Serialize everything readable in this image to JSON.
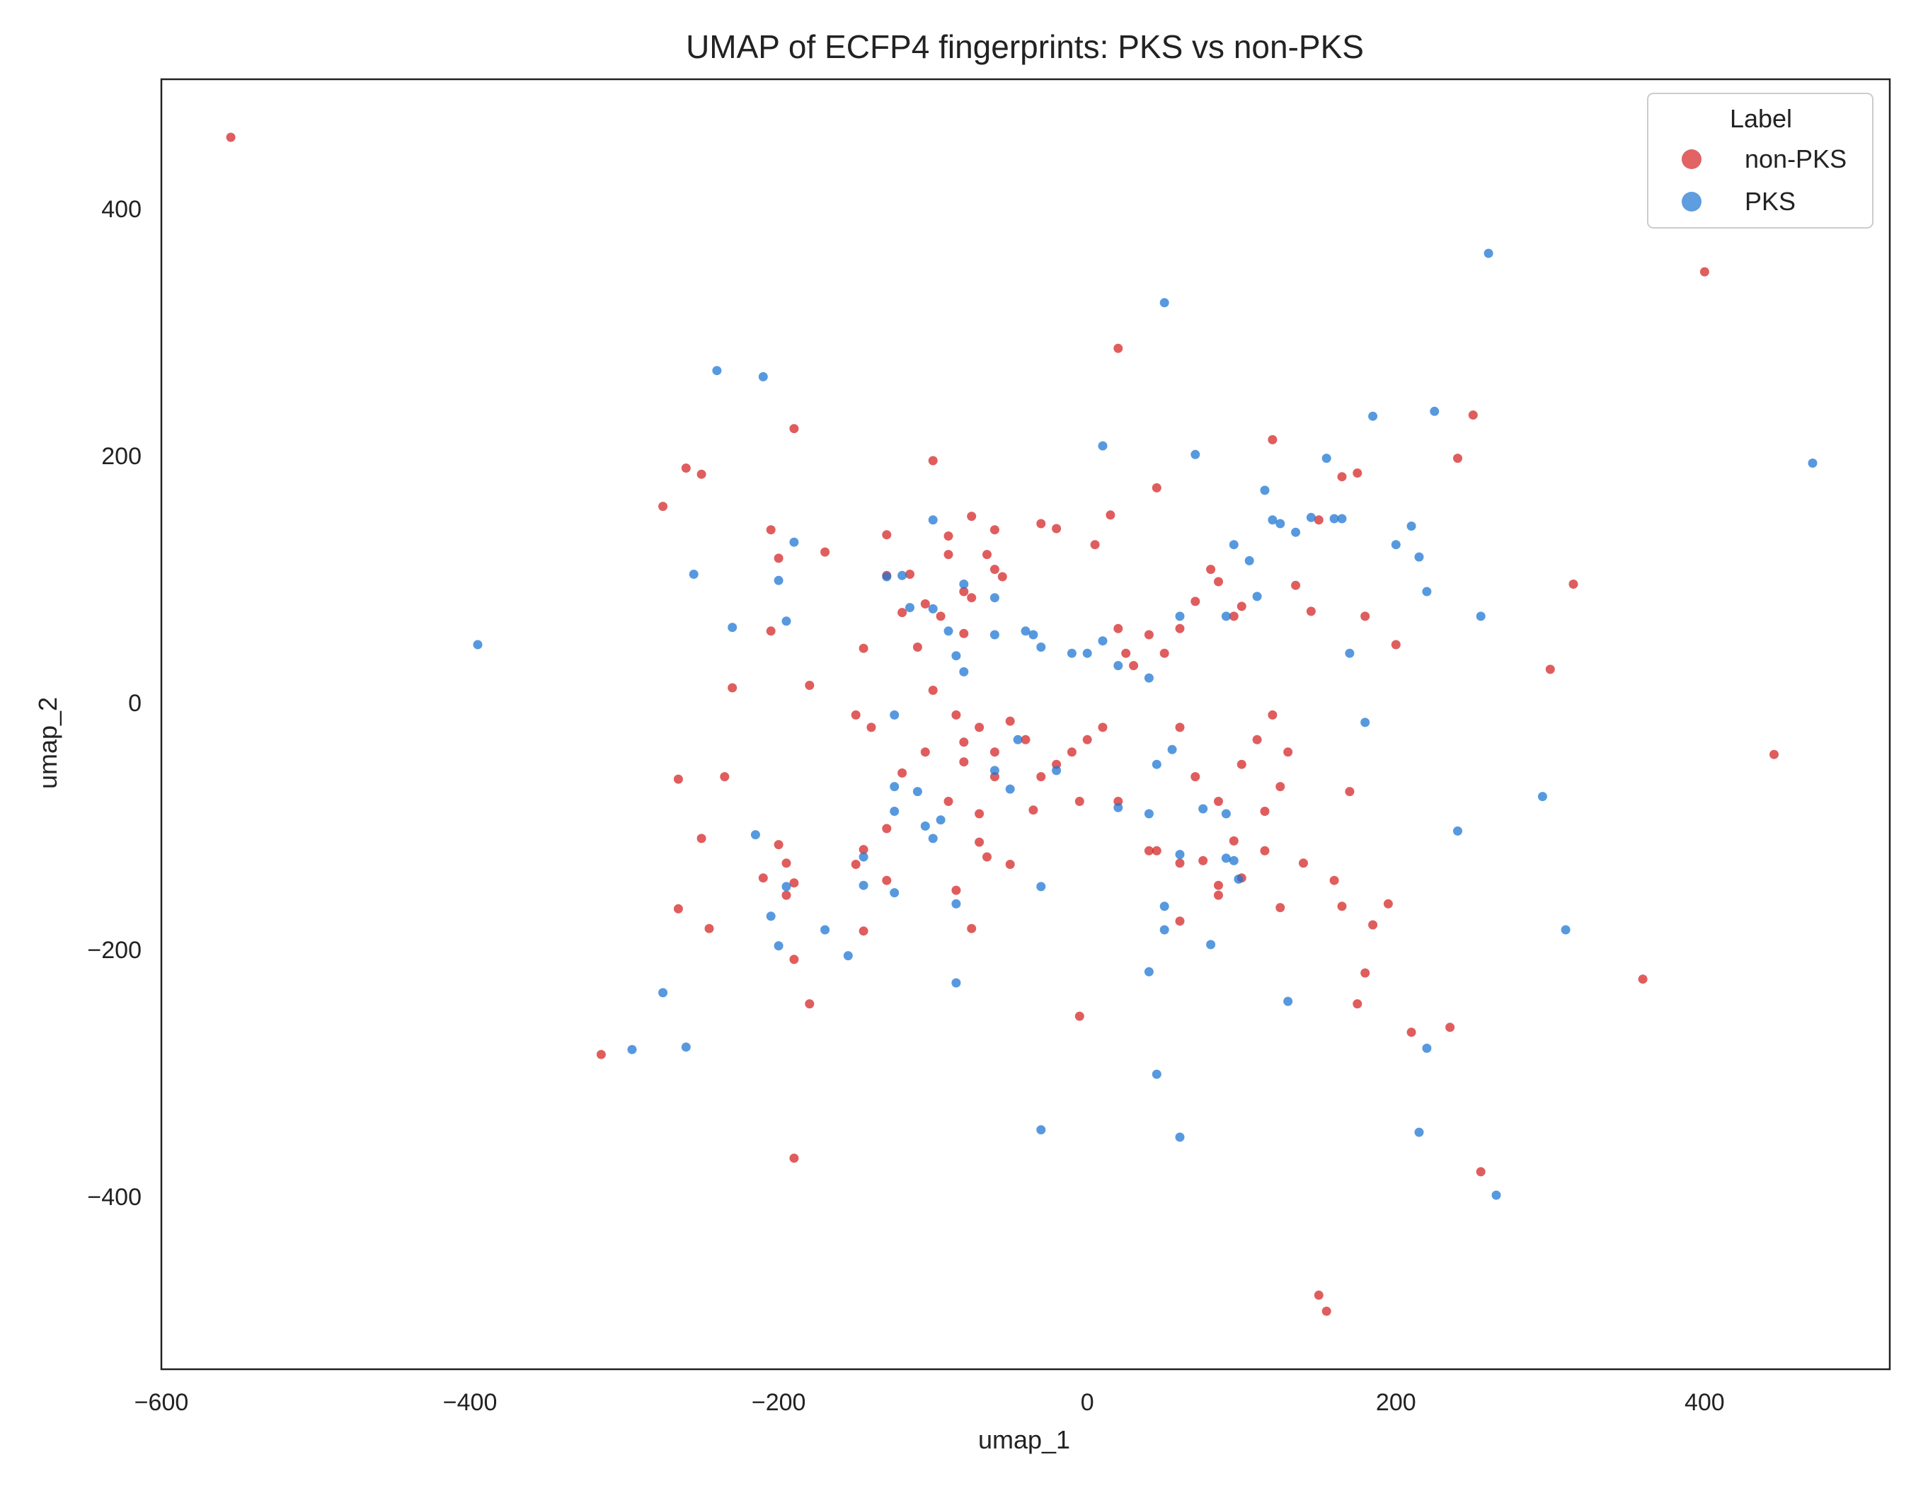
{
  "chart_data": {
    "type": "scatter",
    "title": "UMAP of ECFP4 fingerprints: PKS vs non-PKS",
    "xlabel": "umap_1",
    "ylabel": "umap_2",
    "xlim": [
      -600,
      520
    ],
    "ylim": [
      -540,
      505
    ],
    "xticks": [
      -600,
      -400,
      -200,
      0,
      200,
      400
    ],
    "yticks": [
      -400,
      -200,
      0,
      200,
      400
    ],
    "grid": false,
    "legend": {
      "title": "Label",
      "position": "top-right"
    },
    "series": [
      {
        "name": "non-PKS",
        "color": "#d62728",
        "points": [
          [
            -555,
            458
          ],
          [
            20,
            287
          ],
          [
            400,
            349
          ],
          [
            -190,
            222
          ],
          [
            250,
            233
          ],
          [
            120,
            213
          ],
          [
            -260,
            190
          ],
          [
            -250,
            185
          ],
          [
            -275,
            159
          ],
          [
            240,
            198
          ],
          [
            175,
            186
          ],
          [
            165,
            183
          ],
          [
            -100,
            196
          ],
          [
            45,
            174
          ],
          [
            -205,
            140
          ],
          [
            -200,
            117
          ],
          [
            -170,
            122
          ],
          [
            -130,
            136
          ],
          [
            -90,
            135
          ],
          [
            -75,
            151
          ],
          [
            -60,
            140
          ],
          [
            -30,
            145
          ],
          [
            -20,
            141
          ],
          [
            5,
            128
          ],
          [
            15,
            152
          ],
          [
            -145,
            44
          ],
          [
            -205,
            58
          ],
          [
            -180,
            14
          ],
          [
            -230,
            12
          ],
          [
            -265,
            -62
          ],
          [
            -235,
            -60
          ],
          [
            -250,
            -110
          ],
          [
            -265,
            -167
          ],
          [
            -245,
            -183
          ],
          [
            -200,
            -115
          ],
          [
            -195,
            -130
          ],
          [
            -210,
            -142
          ],
          [
            -190,
            -146
          ],
          [
            -195,
            -156
          ],
          [
            -190,
            -208
          ],
          [
            -180,
            -244
          ],
          [
            -315,
            -285
          ],
          [
            -190,
            -369
          ],
          [
            -145,
            -119
          ],
          [
            -150,
            -131
          ],
          [
            -130,
            -144
          ],
          [
            -145,
            -185
          ],
          [
            -130,
            -102
          ],
          [
            -75,
            -183
          ],
          [
            -85,
            -152
          ],
          [
            -70,
            -113
          ],
          [
            -65,
            -125
          ],
          [
            -50,
            -131
          ],
          [
            -70,
            -90
          ],
          [
            -35,
            -87
          ],
          [
            -60,
            -60
          ],
          [
            -80,
            -32
          ],
          [
            -85,
            -10
          ],
          [
            -100,
            10
          ],
          [
            -110,
            45
          ],
          [
            -105,
            80
          ],
          [
            -95,
            70
          ],
          [
            -80,
            56
          ],
          [
            -75,
            85
          ],
          [
            -60,
            108
          ],
          [
            -55,
            102
          ],
          [
            -90,
            120
          ],
          [
            -115,
            104
          ],
          [
            -130,
            103
          ],
          [
            -120,
            73
          ],
          [
            -80,
            90
          ],
          [
            -65,
            120
          ],
          [
            300,
            27
          ],
          [
            315,
            96
          ],
          [
            200,
            47
          ],
          [
            180,
            70
          ],
          [
            150,
            148
          ],
          [
            145,
            74
          ],
          [
            135,
            95
          ],
          [
            100,
            78
          ],
          [
            95,
            70
          ],
          [
            85,
            98
          ],
          [
            80,
            108
          ],
          [
            70,
            82
          ],
          [
            60,
            60
          ],
          [
            50,
            40
          ],
          [
            40,
            55
          ],
          [
            30,
            30
          ],
          [
            25,
            40
          ],
          [
            20,
            60
          ],
          [
            10,
            -20
          ],
          [
            0,
            -30
          ],
          [
            -10,
            -40
          ],
          [
            -20,
            -50
          ],
          [
            -30,
            -60
          ],
          [
            -40,
            -30
          ],
          [
            -50,
            -15
          ],
          [
            -60,
            -40
          ],
          [
            -70,
            -20
          ],
          [
            -80,
            -48
          ],
          [
            -90,
            -80
          ],
          [
            45,
            -120
          ],
          [
            60,
            -130
          ],
          [
            60,
            -177
          ],
          [
            75,
            -128
          ],
          [
            85,
            -148
          ],
          [
            95,
            -112
          ],
          [
            100,
            -142
          ],
          [
            85,
            -156
          ],
          [
            115,
            -120
          ],
          [
            125,
            -68
          ],
          [
            140,
            -130
          ],
          [
            125,
            -166
          ],
          [
            160,
            -144
          ],
          [
            165,
            -165
          ],
          [
            170,
            -72
          ],
          [
            175,
            -244
          ],
          [
            180,
            -219
          ],
          [
            185,
            -180
          ],
          [
            195,
            -163
          ],
          [
            210,
            -267
          ],
          [
            235,
            -263
          ],
          [
            255,
            -380
          ],
          [
            360,
            -224
          ],
          [
            445,
            -42
          ],
          [
            150,
            -480
          ],
          [
            155,
            -493
          ],
          [
            -5,
            -254
          ],
          [
            -5,
            -80
          ],
          [
            20,
            -80
          ],
          [
            40,
            -120
          ],
          [
            100,
            -50
          ],
          [
            110,
            -30
          ],
          [
            115,
            -88
          ],
          [
            120,
            -10
          ],
          [
            130,
            -40
          ],
          [
            60,
            -20
          ],
          [
            70,
            -60
          ],
          [
            85,
            -80
          ],
          [
            -120,
            -57
          ],
          [
            -150,
            -10
          ],
          [
            -105,
            -40
          ],
          [
            -140,
            -20
          ]
        ]
      },
      {
        "name": "PKS",
        "color": "#1f77d4",
        "points": [
          [
            260,
            364
          ],
          [
            50,
            324
          ],
          [
            470,
            194
          ],
          [
            -240,
            269
          ],
          [
            -210,
            264
          ],
          [
            10,
            208
          ],
          [
            70,
            201
          ],
          [
            155,
            198
          ],
          [
            -190,
            130
          ],
          [
            -200,
            99
          ],
          [
            -255,
            104
          ],
          [
            -230,
            61
          ],
          [
            -195,
            66
          ],
          [
            -395,
            47
          ],
          [
            -100,
            148
          ],
          [
            -120,
            103
          ],
          [
            -130,
            102
          ],
          [
            -115,
            77
          ],
          [
            -80,
            96
          ],
          [
            -100,
            76
          ],
          [
            -90,
            58
          ],
          [
            -85,
            38
          ],
          [
            -80,
            25
          ],
          [
            -60,
            55
          ],
          [
            -60,
            85
          ],
          [
            -40,
            58
          ],
          [
            -35,
            55
          ],
          [
            -30,
            45
          ],
          [
            -10,
            40
          ],
          [
            20,
            30
          ],
          [
            40,
            20
          ],
          [
            60,
            70
          ],
          [
            90,
            70
          ],
          [
            95,
            128
          ],
          [
            105,
            115
          ],
          [
            110,
            86
          ],
          [
            115,
            172
          ],
          [
            120,
            148
          ],
          [
            125,
            145
          ],
          [
            135,
            138
          ],
          [
            145,
            150
          ],
          [
            160,
            149
          ],
          [
            165,
            149
          ],
          [
            170,
            40
          ],
          [
            185,
            232
          ],
          [
            200,
            128
          ],
          [
            210,
            143
          ],
          [
            215,
            118
          ],
          [
            220,
            90
          ],
          [
            225,
            236
          ],
          [
            255,
            70
          ],
          [
            -125,
            -10
          ],
          [
            -125,
            -68
          ],
          [
            -110,
            -72
          ],
          [
            -105,
            -100
          ],
          [
            -95,
            -95
          ],
          [
            -100,
            -110
          ],
          [
            -125,
            -88
          ],
          [
            -145,
            -125
          ],
          [
            -145,
            -148
          ],
          [
            -125,
            -154
          ],
          [
            -85,
            -163
          ],
          [
            -85,
            -227
          ],
          [
            -170,
            -184
          ],
          [
            -155,
            -205
          ],
          [
            -200,
            -197
          ],
          [
            -205,
            -173
          ],
          [
            -215,
            -107
          ],
          [
            -195,
            -149
          ],
          [
            -275,
            -235
          ],
          [
            -295,
            -281
          ],
          [
            -260,
            -279
          ],
          [
            -30,
            -149
          ],
          [
            -30,
            -346
          ],
          [
            40,
            -218
          ],
          [
            45,
            -301
          ],
          [
            50,
            -165
          ],
          [
            50,
            -184
          ],
          [
            60,
            -352
          ],
          [
            55,
            -38
          ],
          [
            40,
            -90
          ],
          [
            45,
            -50
          ],
          [
            75,
            -86
          ],
          [
            80,
            -196
          ],
          [
            90,
            -90
          ],
          [
            90,
            -126
          ],
          [
            95,
            -128
          ],
          [
            98,
            -143
          ],
          [
            60,
            -123
          ],
          [
            20,
            -85
          ],
          [
            -20,
            -55
          ],
          [
            -50,
            -70
          ],
          [
            130,
            -242
          ],
          [
            180,
            -16
          ],
          [
            240,
            -104
          ],
          [
            220,
            -280
          ],
          [
            215,
            -348
          ],
          [
            265,
            -399
          ],
          [
            295,
            -76
          ],
          [
            310,
            -184
          ],
          [
            -60,
            -55
          ],
          [
            0,
            40
          ],
          [
            10,
            50
          ],
          [
            -45,
            -30
          ]
        ]
      }
    ]
  }
}
